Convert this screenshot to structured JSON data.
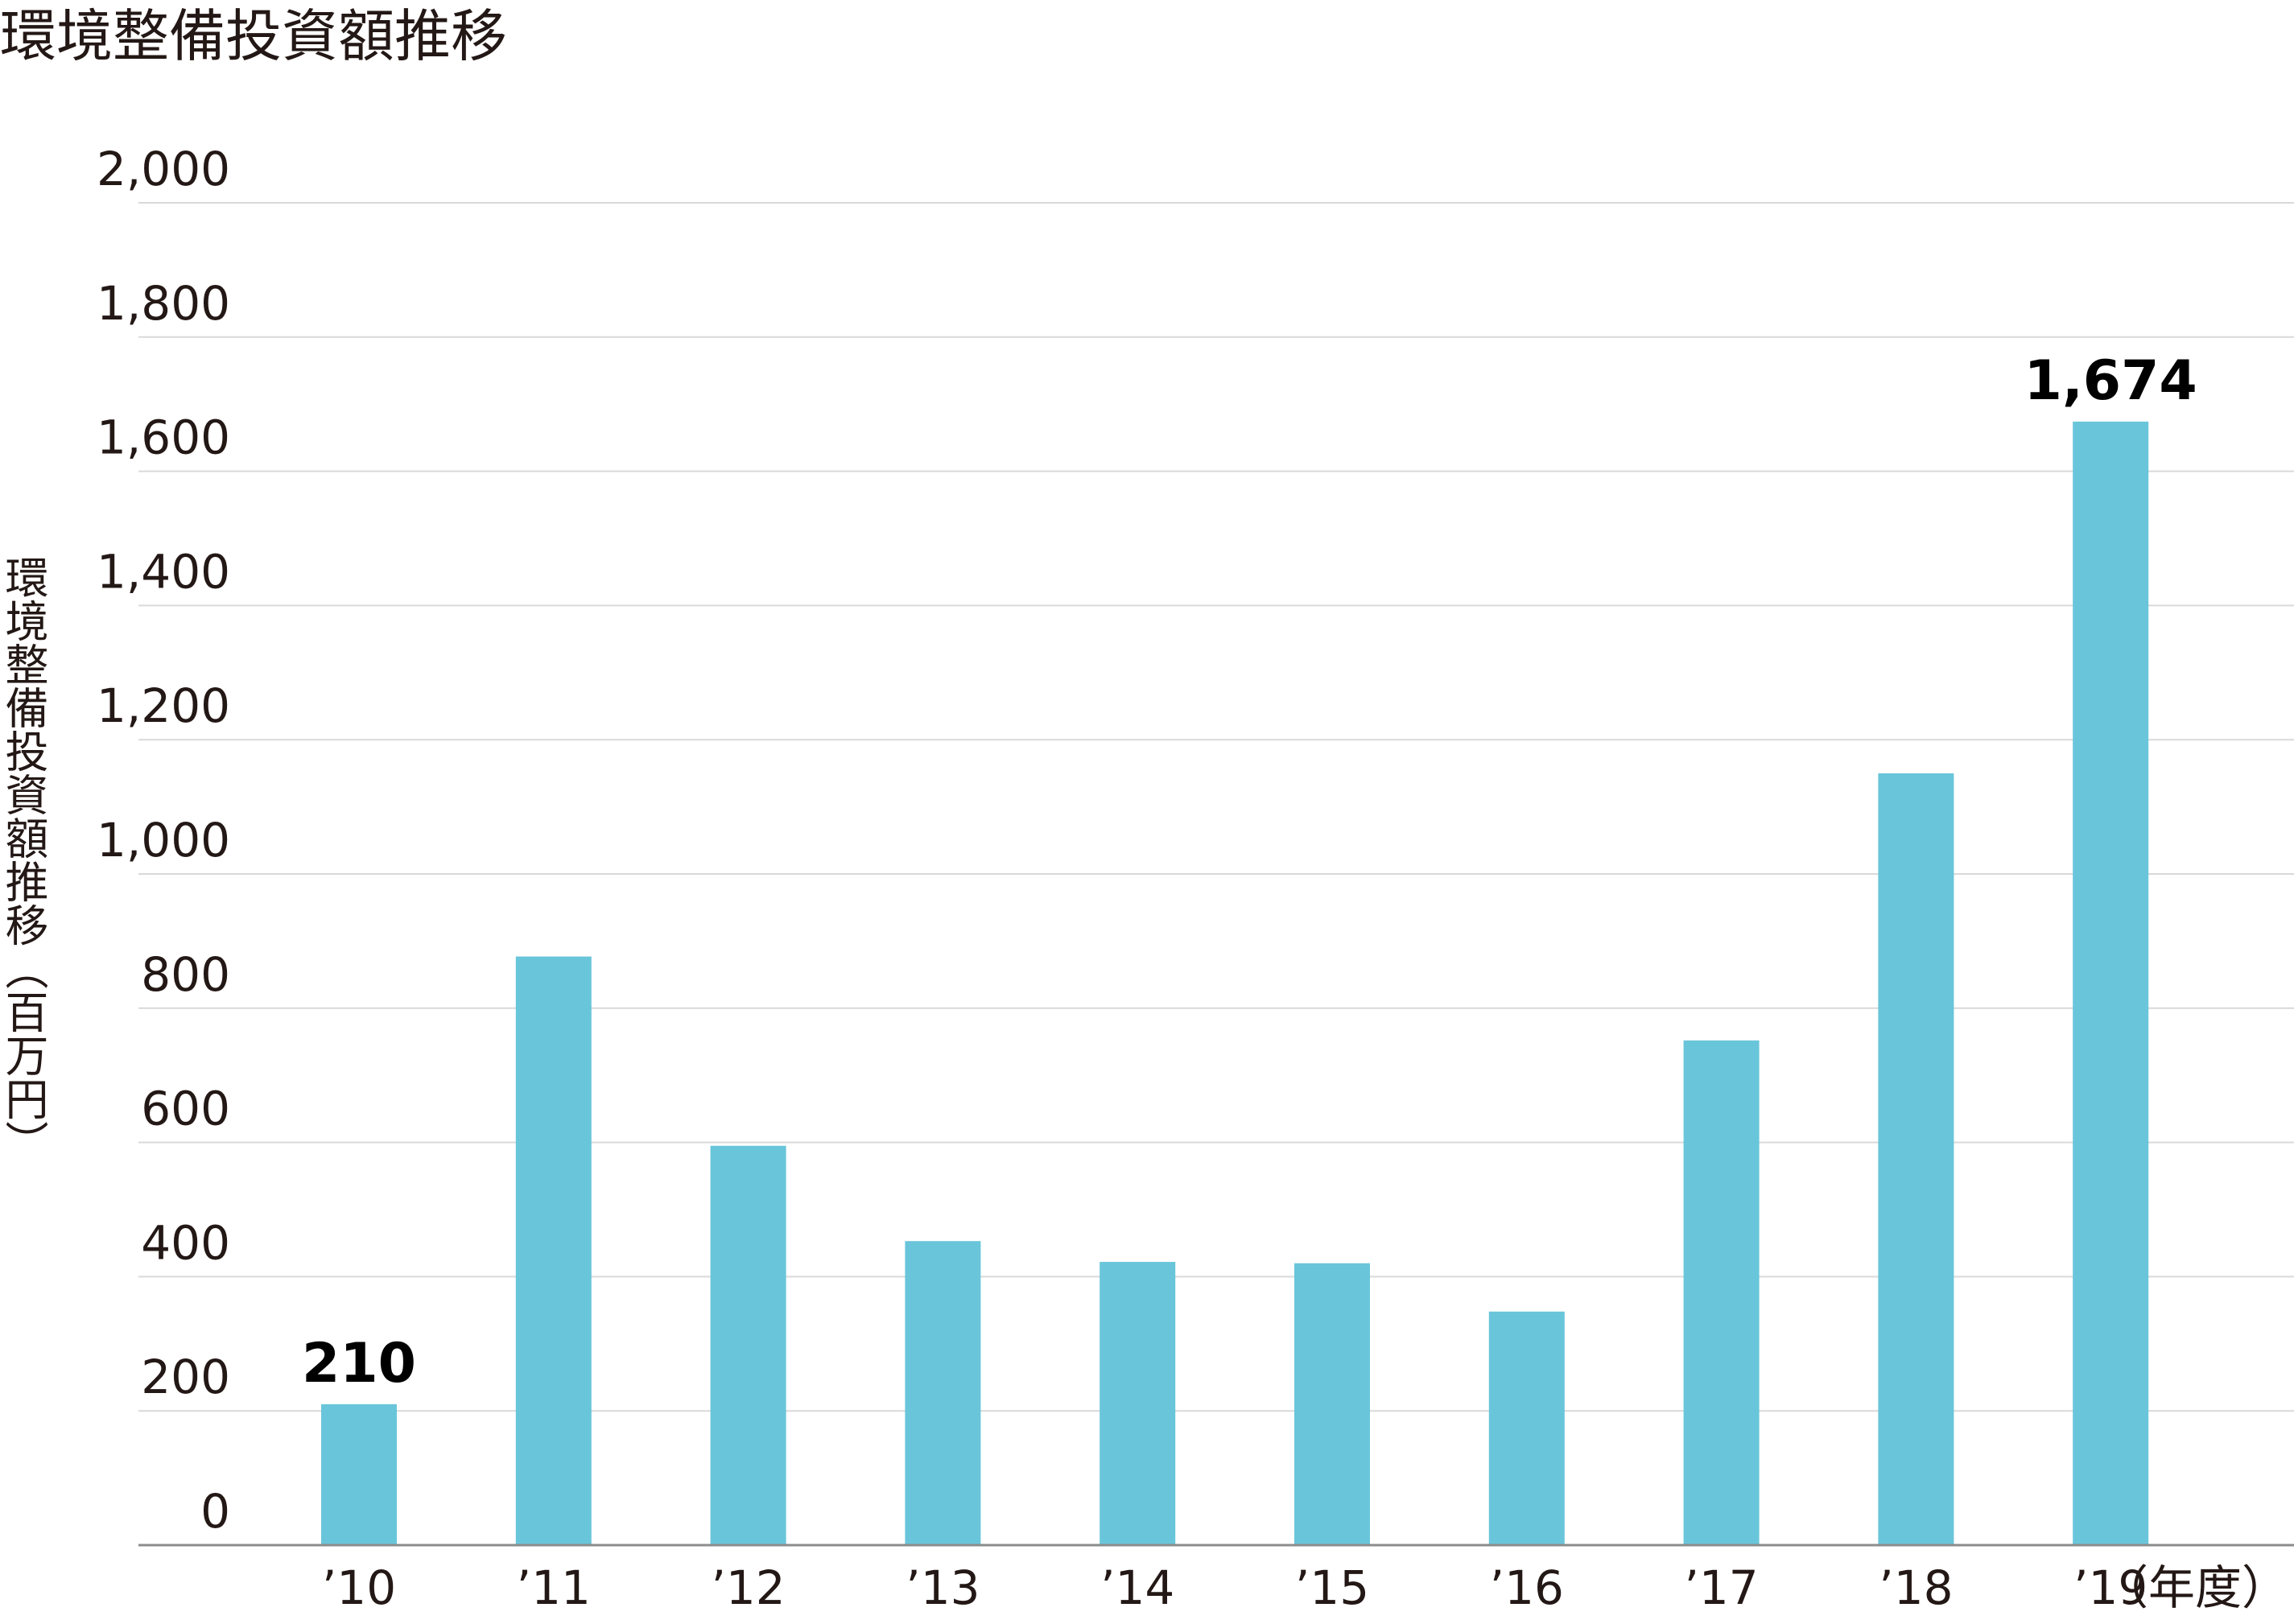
{
  "chart_data": {
    "type": "bar",
    "title": "環境整備投資額推移",
    "ylabel": "環境整備投資額推移（百万円）",
    "xunit": "（年度）",
    "categories": [
      "’10",
      "’11",
      "’12",
      "’13",
      "’14",
      "’15",
      "’16",
      "’17",
      "’18",
      "’19"
    ],
    "values": [
      210,
      877,
      595,
      453,
      422,
      420,
      348,
      752,
      1150,
      1674
    ],
    "data_labels": [
      "210",
      "",
      "",
      "",
      "",
      "",
      "",
      "",
      "",
      "1,674"
    ],
    "ylim": [
      0,
      2000
    ],
    "yticks": [
      0,
      200,
      400,
      600,
      800,
      1000,
      1200,
      1400,
      1600,
      1800,
      2000
    ],
    "ytick_labels": [
      "0",
      "200",
      "400",
      "600",
      "800",
      "1,000",
      "1,200",
      "1,400",
      "1,600",
      "1,800",
      "2,000"
    ],
    "grid": true,
    "bar_color": "#69c5da",
    "grid_color": "#d9d9d9",
    "axis_color": "#8c8c8c"
  }
}
